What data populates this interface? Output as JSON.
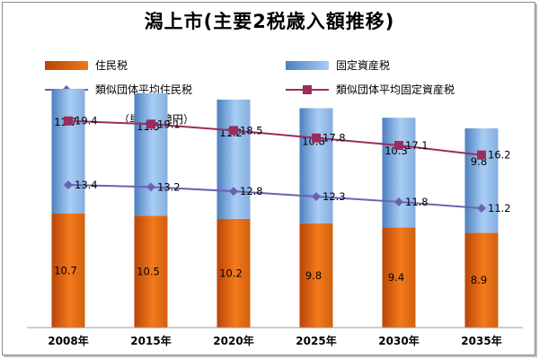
{
  "title": "潟上市(主要2税歳入額推移)",
  "unit_note": "（単位：億円）",
  "legend": {
    "resident_tax": "住民税",
    "property_tax": "固定資産税",
    "similar_resident": "類似団体平均住民税",
    "similar_property": "類似団体平均固定資産税"
  },
  "colors": {
    "resident_tax": "#e8650c",
    "property_tax": "#7fb0e8",
    "similar_resident": "#6a62b0",
    "similar_property": "#9b2c5e"
  },
  "chart_data": {
    "type": "bar",
    "categories": [
      "2008年",
      "2015年",
      "2020年",
      "2025年",
      "2030年",
      "2035年"
    ],
    "series": [
      {
        "name": "住民税",
        "type": "stacked-bar",
        "values": [
          10.7,
          10.5,
          10.2,
          9.8,
          9.4,
          8.9
        ]
      },
      {
        "name": "固定資産税",
        "type": "stacked-bar",
        "values": [
          11.7,
          11.5,
          11.2,
          10.8,
          10.3,
          9.8
        ]
      },
      {
        "name": "類似団体平均住民税",
        "type": "line",
        "values": [
          13.4,
          13.2,
          12.8,
          12.3,
          11.8,
          11.2
        ]
      },
      {
        "name": "類似団体平均固定資産税",
        "type": "line",
        "values": [
          19.4,
          19.1,
          18.5,
          17.8,
          17.1,
          16.2
        ]
      }
    ],
    "ylim": [
      0,
      23
    ],
    "grid": false,
    "legend_position": "top"
  }
}
